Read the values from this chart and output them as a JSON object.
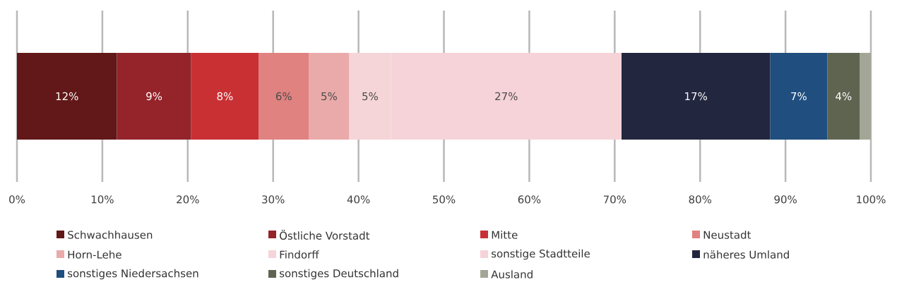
{
  "chart_data": {
    "type": "bar",
    "orientation": "horizontal",
    "stacked": true,
    "categories": [
      null
    ],
    "series": [
      {
        "name": "Schwachhausen",
        "color": "#621818",
        "values": [
          11.7
        ],
        "value_labels": [
          "12%"
        ]
      },
      {
        "name": "Östliche Vorstadt",
        "color": "#94232a",
        "values": [
          8.7
        ],
        "value_labels": [
          "9%"
        ]
      },
      {
        "name": "Mitte",
        "color": "#c93034",
        "values": [
          7.9
        ],
        "value_labels": [
          "8%"
        ]
      },
      {
        "name": "Neustadt",
        "color": "#e08280",
        "values": [
          5.9
        ],
        "value_labels": [
          "6%"
        ]
      },
      {
        "name": "Horn-Lehe",
        "color": "#ebaaaa",
        "values": [
          4.7
        ],
        "value_labels": [
          "5%"
        ]
      },
      {
        "name": "Findorff",
        "color": "#f5d5d7",
        "values": [
          4.9
        ],
        "value_labels": [
          "5%"
        ]
      },
      {
        "name": "sonstige Stadtteile",
        "color": "#f6d3d8",
        "values": [
          27.0
        ],
        "value_labels": [
          "27%"
        ]
      },
      {
        "name": "näheres Umland",
        "color": "#23263f",
        "values": [
          17.4
        ],
        "value_labels": [
          "17%"
        ]
      },
      {
        "name": "sonstiges Niedersachsen",
        "color": "#1f4e7f",
        "values": [
          6.7
        ],
        "value_labels": [
          "7%"
        ]
      },
      {
        "name": "sonstiges Deutschland",
        "color": "#5e6450",
        "values": [
          3.8
        ],
        "value_labels": [
          "4%"
        ]
      },
      {
        "name": "Ausland",
        "color": "#a3a696",
        "values": [
          1.3
        ],
        "value_labels": [
          null
        ]
      }
    ],
    "xlim": [
      0,
      100
    ],
    "xticks": [
      {
        "value": 0,
        "label": "0%"
      },
      {
        "value": 10,
        "label": "10%"
      },
      {
        "value": 20,
        "label": "20%"
      },
      {
        "value": 30,
        "label": "30%"
      },
      {
        "value": 40,
        "label": "40%"
      },
      {
        "value": 50,
        "label": "50%"
      },
      {
        "value": 60,
        "label": "60%"
      },
      {
        "value": 70,
        "label": "70%"
      },
      {
        "value": 80,
        "label": "80%"
      },
      {
        "value": 90,
        "label": "90%"
      },
      {
        "value": 100,
        "label": "100%"
      }
    ],
    "grid": "x",
    "legend": "bottom"
  }
}
